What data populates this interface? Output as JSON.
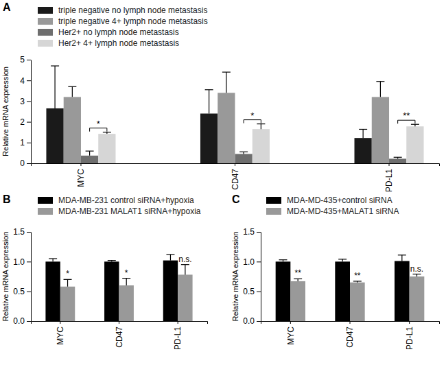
{
  "chart_data": [
    {
      "type": "bar",
      "title": "A",
      "y_label": "Relative mRNA expression",
      "categories": [
        "MYC",
        "CD47",
        "PD-L1"
      ],
      "series": [
        {
          "name": "triple negative no lymph node metastasis",
          "color": "#1a1a1a",
          "values": [
            2.65,
            2.4,
            1.22
          ],
          "errors": [
            2.05,
            1.15,
            0.42
          ]
        },
        {
          "name": "triple negative 4+ lymph node metastasis",
          "color": "#999999",
          "values": [
            3.2,
            3.4,
            3.2
          ],
          "errors": [
            0.5,
            1.0,
            0.75
          ]
        },
        {
          "name": "Her2+ no lymph node metastasis",
          "color": "#6e6e6e",
          "values": [
            0.37,
            0.45,
            0.22
          ],
          "errors": [
            0.22,
            0.1,
            0.07
          ]
        },
        {
          "name": "Her2+ 4+ lymph node metastasis",
          "color": "#d6d6d6",
          "values": [
            1.42,
            1.65,
            1.78
          ],
          "errors": [
            0.08,
            0.25,
            0.1
          ]
        }
      ],
      "ylim": [
        0,
        5
      ],
      "yticks": [
        0,
        1,
        2,
        3,
        4,
        5
      ],
      "grid": false,
      "legend": "top-left",
      "annotations": [
        {
          "text": "*",
          "category": "MYC",
          "series": [
            "Her2+ no lymph node metastasis",
            "Her2+ 4+ lymph node metastasis"
          ]
        },
        {
          "text": "*",
          "category": "CD47",
          "series": [
            "Her2+ no lymph node metastasis",
            "Her2+ 4+ lymph node metastasis"
          ]
        },
        {
          "text": "**",
          "category": "PD-L1",
          "series": [
            "Her2+ no lymph node metastasis",
            "Her2+ 4+ lymph node metastasis"
          ]
        }
      ]
    },
    {
      "type": "bar",
      "title": "B",
      "y_label": "Relative mRNA expression",
      "categories": [
        "MYC",
        "CD47",
        "PD-L1"
      ],
      "series": [
        {
          "name": "MDA-MB-231 control siRNA+hypoxia",
          "color": "#000000",
          "values": [
            1.0,
            1.0,
            1.02
          ],
          "errors": [
            0.05,
            0.02,
            0.1
          ]
        },
        {
          "name": "MDA-MB-231 MALAT1 siRNA+hypoxia",
          "color": "#999999",
          "values": [
            0.58,
            0.6,
            0.78
          ],
          "errors": [
            0.12,
            0.12,
            0.17
          ]
        }
      ],
      "ylim": [
        0,
        1.5
      ],
      "yticks": [
        {
          "value": 0,
          "label": "0.0"
        },
        {
          "value": 0.5,
          "label": "0.5"
        },
        {
          "value": 1,
          "label": "1.0"
        },
        {
          "value": 1.5,
          "label": "1.5"
        }
      ],
      "grid": false,
      "legend": "top-left",
      "annotations": [
        {
          "text": "*",
          "category": "MYC",
          "series": [
            "MDA-MB-231 MALAT1 siRNA+hypoxia"
          ]
        },
        {
          "text": "*",
          "category": "CD47",
          "series": [
            "MDA-MB-231 MALAT1 siRNA+hypoxia"
          ]
        },
        {
          "text": "n.s.",
          "category": "PD-L1",
          "series": [
            "MDA-MB-231 MALAT1 siRNA+hypoxia"
          ]
        }
      ]
    },
    {
      "type": "bar",
      "title": "C",
      "y_label": "Relative mRNA expression",
      "categories": [
        "MYC",
        "CD47",
        "PD-L1"
      ],
      "series": [
        {
          "name": "MDA-MD-435+control siRNA",
          "color": "#000000",
          "values": [
            1.0,
            1.0,
            1.01
          ],
          "errors": [
            0.03,
            0.04,
            0.1
          ]
        },
        {
          "name": "MDA-MD-435+MALAT1 siRNA",
          "color": "#999999",
          "values": [
            0.67,
            0.65,
            0.75
          ],
          "errors": [
            0.04,
            0.02,
            0.04
          ]
        }
      ],
      "ylim": [
        0,
        1.5
      ],
      "yticks": [
        {
          "value": 0,
          "label": "0.0"
        },
        {
          "value": 0.5,
          "label": "0.5"
        },
        {
          "value": 1,
          "label": "1.0"
        },
        {
          "value": 1.5,
          "label": "1.5"
        }
      ],
      "grid": false,
      "legend": "top-left",
      "annotations": [
        {
          "text": "**",
          "category": "MYC",
          "series": [
            "MDA-MD-435+MALAT1 siRNA"
          ]
        },
        {
          "text": "**",
          "category": "CD47",
          "series": [
            "MDA-MD-435+MALAT1 siRNA"
          ]
        },
        {
          "text": "n.s.",
          "category": "PD-L1",
          "series": [
            "MDA-MD-435+MALAT1 siRNA"
          ]
        }
      ]
    }
  ]
}
